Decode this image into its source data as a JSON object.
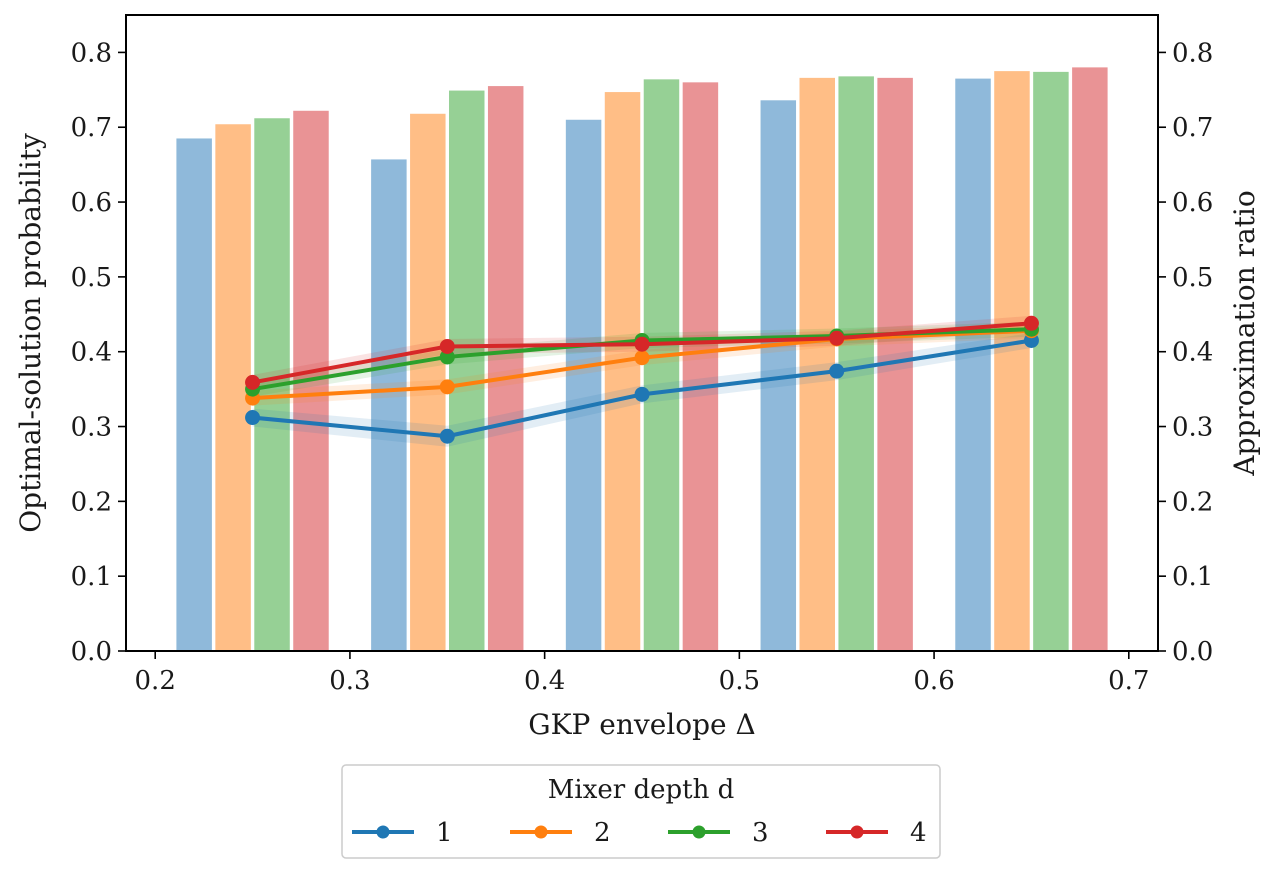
{
  "chart_data": {
    "type": "bar",
    "xlabel": "GKP envelope Δ",
    "ylabel_left": "Optimal-solution probability",
    "ylabel_right": "Approximation ratio",
    "xlim": [
      0.185,
      0.715
    ],
    "ylim": [
      0,
      0.85
    ],
    "x_ticks": [
      0.2,
      0.3,
      0.4,
      0.5,
      0.6,
      0.7
    ],
    "x_tick_labels": [
      "0.2",
      "0.3",
      "0.4",
      "0.5",
      "0.6",
      "0.7"
    ],
    "y_ticks": [
      0.0,
      0.1,
      0.2,
      0.3,
      0.4,
      0.5,
      0.6,
      0.7,
      0.8
    ],
    "y_tick_labels": [
      "0.0",
      "0.1",
      "0.2",
      "0.3",
      "0.4",
      "0.5",
      "0.6",
      "0.7",
      "0.8"
    ],
    "grid": false,
    "x": [
      0.25,
      0.35,
      0.45,
      0.55,
      0.65
    ],
    "bar_width": 0.019,
    "bar_offsets": [
      -0.03,
      -0.01,
      0.01,
      0.03
    ],
    "legend": {
      "title": "Mixer depth d",
      "placement": "bottom-center-outside"
    },
    "bars_axis": "right",
    "lines_axis": "left",
    "series": [
      {
        "name": "1",
        "color": "#1f77b4",
        "bar_color": "#8fb9da",
        "bars": [
          0.686,
          0.658,
          0.711,
          0.737,
          0.766
        ],
        "line": [
          0.312,
          0.287,
          0.343,
          0.374,
          0.415
        ],
        "band_halfwidth": [
          0.012,
          0.014,
          0.012,
          0.012,
          0.01
        ]
      },
      {
        "name": "2",
        "color": "#ff7f0e",
        "bar_color": "#ffbe86",
        "bars": [
          0.705,
          0.719,
          0.748,
          0.767,
          0.776
        ],
        "line": [
          0.338,
          0.353,
          0.392,
          0.417,
          0.428
        ],
        "band_halfwidth": [
          0.01,
          0.01,
          0.01,
          0.01,
          0.01
        ]
      },
      {
        "name": "3",
        "color": "#2ca02c",
        "bar_color": "#96d095",
        "bars": [
          0.713,
          0.75,
          0.765,
          0.769,
          0.775
        ],
        "line": [
          0.35,
          0.393,
          0.415,
          0.421,
          0.43
        ],
        "band_halfwidth": [
          0.01,
          0.01,
          0.01,
          0.01,
          0.01
        ]
      },
      {
        "name": "4",
        "color": "#d62728",
        "bar_color": "#e99395",
        "bars": [
          0.723,
          0.756,
          0.761,
          0.767,
          0.781
        ],
        "line": [
          0.359,
          0.407,
          0.41,
          0.418,
          0.438
        ],
        "band_halfwidth": [
          0.01,
          0.01,
          0.01,
          0.01,
          0.01
        ]
      }
    ]
  }
}
